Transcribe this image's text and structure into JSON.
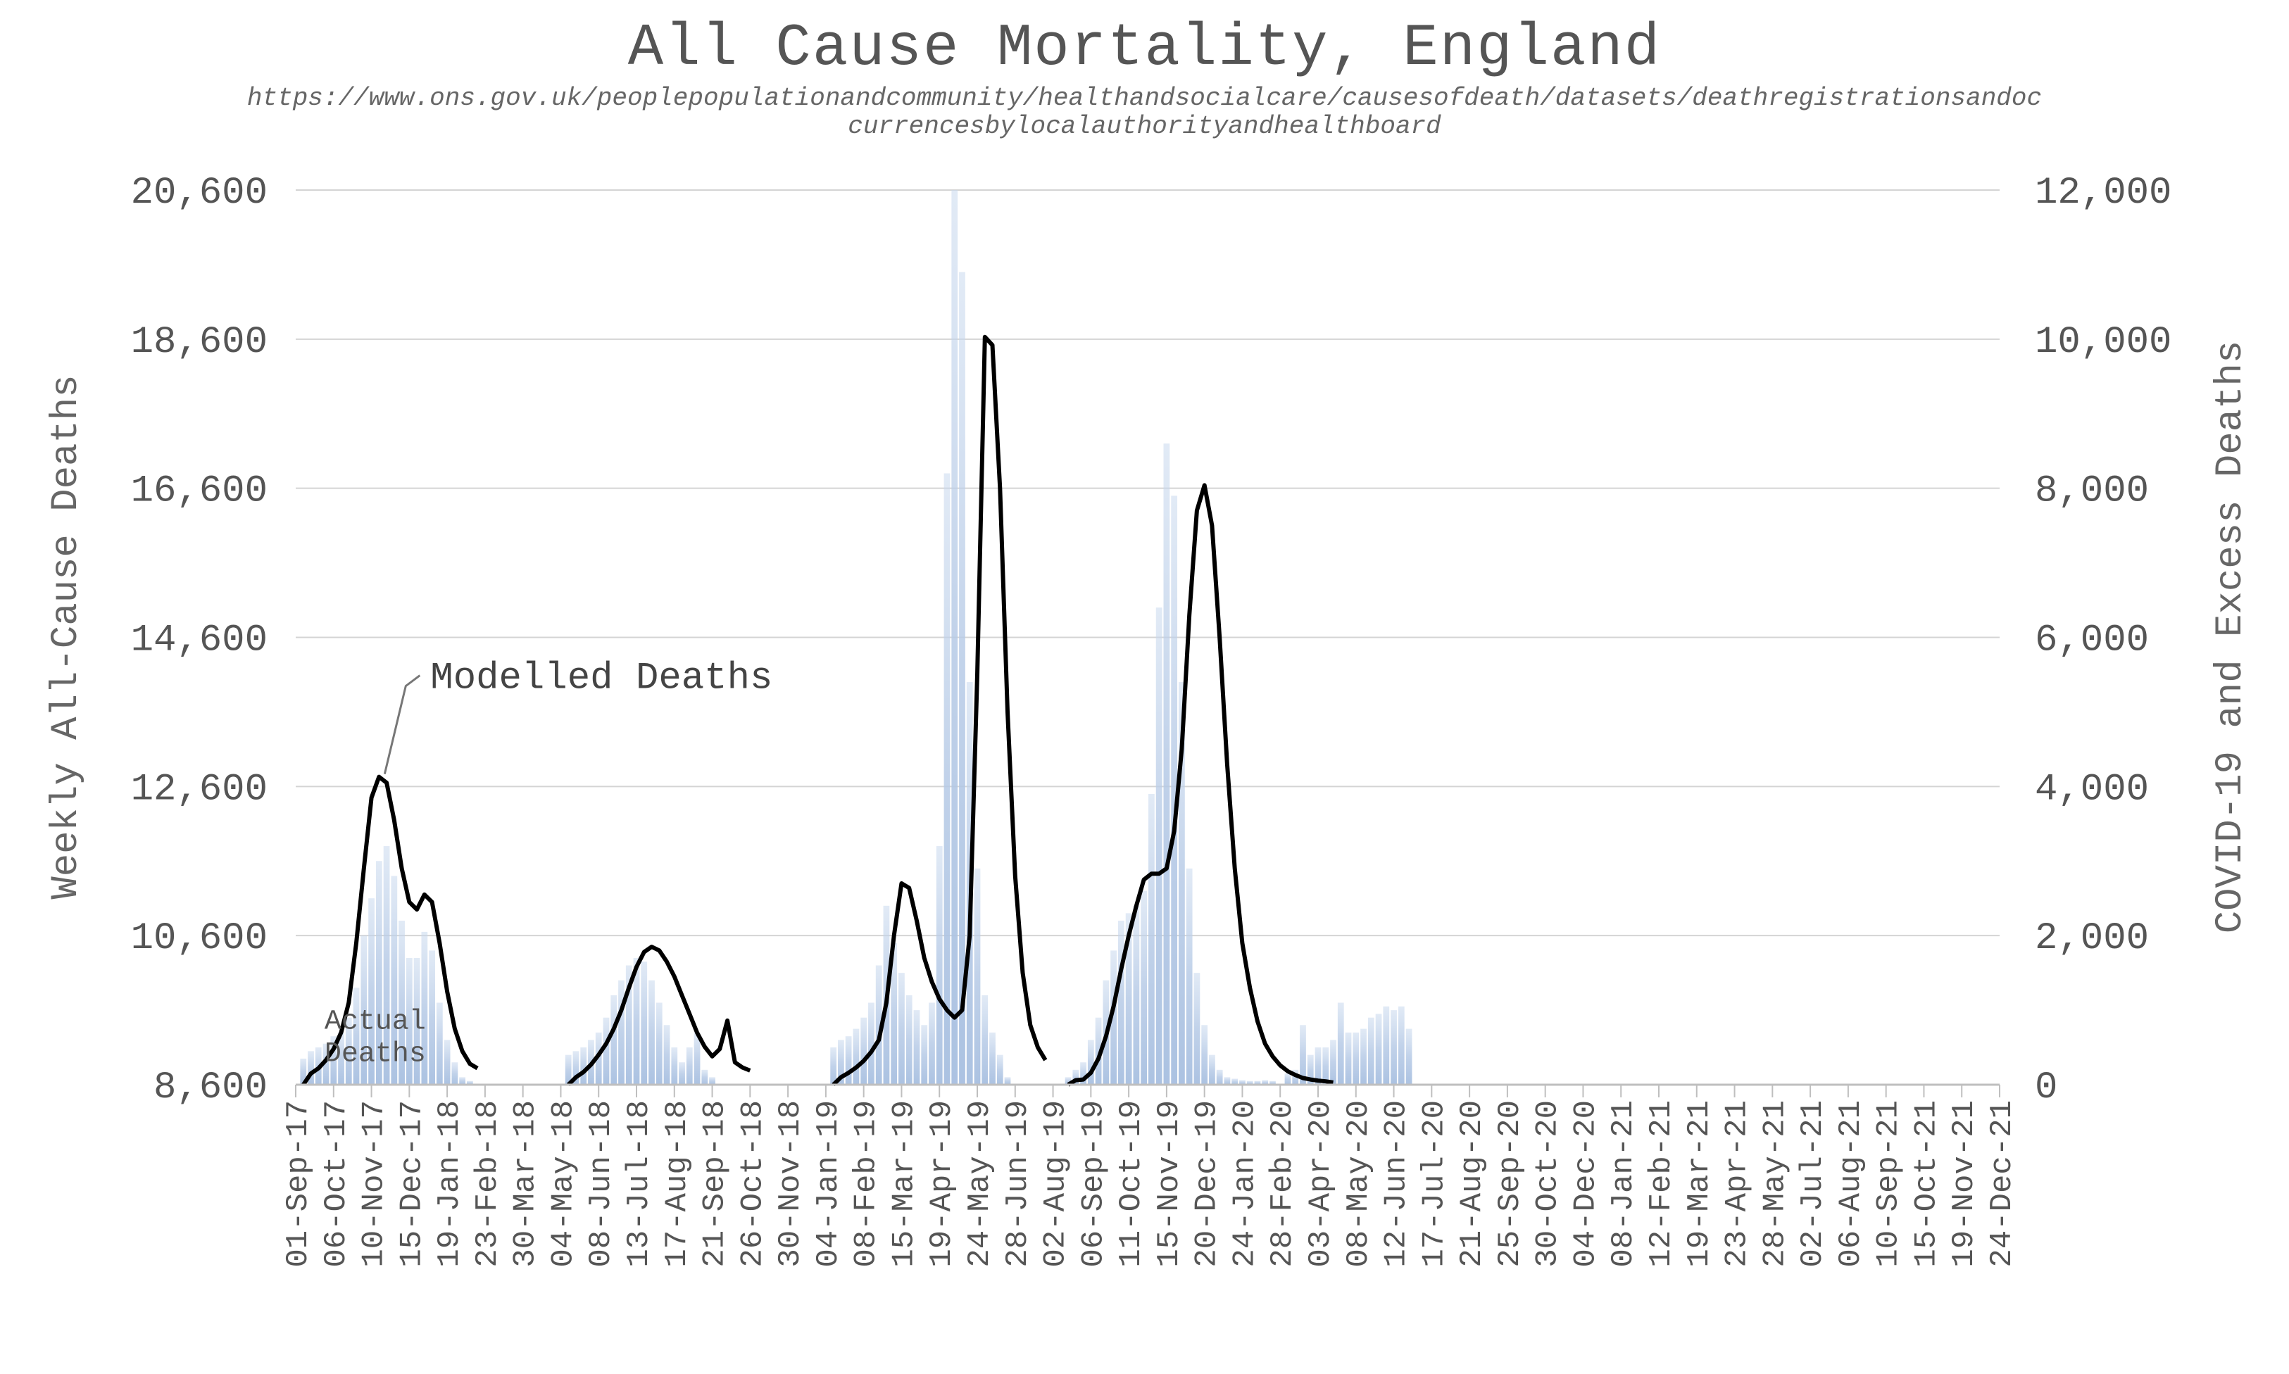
{
  "chart_data": {
    "type": "area",
    "title": "All Cause Mortality, England",
    "subtitle": "https://www.ons.gov.uk/peoplepopulationandcommunity/healthandsocialcare/causesofdeath/datasets/deathregistrationsandoccurrencesbylocalauthorityandhealthboard",
    "ylabel": "Weekly All-Cause Deaths",
    "y2label": "COVID-19 and Excess Deaths",
    "ylim": [
      8600,
      20600
    ],
    "y2lim": [
      0,
      12000
    ],
    "yticks": [
      "8,600",
      "10,600",
      "12,600",
      "14,600",
      "16,600",
      "18,600",
      "20,600"
    ],
    "y2ticks": [
      "0",
      "2,000",
      "4,000",
      "6,000",
      "8,000",
      "10,000",
      "12,000"
    ],
    "grid": true,
    "xticks": [
      "01-Sep-17",
      "06-Oct-17",
      "10-Nov-17",
      "15-Dec-17",
      "19-Jan-18",
      "23-Feb-18",
      "30-Mar-18",
      "04-May-18",
      "08-Jun-18",
      "13-Jul-18",
      "17-Aug-18",
      "21-Sep-18",
      "26-Oct-18",
      "30-Nov-18",
      "04-Jan-19",
      "08-Feb-19",
      "15-Mar-19",
      "19-Apr-19",
      "24-May-19",
      "28-Jun-19",
      "02-Aug-19",
      "06-Sep-19",
      "11-Oct-19",
      "15-Nov-19",
      "20-Dec-19",
      "24-Jan-20",
      "28-Feb-20",
      "03-Apr-20",
      "08-May-20",
      "12-Jun-20",
      "17-Jul-20",
      "21-Aug-20",
      "25-Sep-20",
      "30-Oct-20",
      "04-Dec-20",
      "08-Jan-21",
      "12-Feb-21",
      "19-Mar-21",
      "23-Apr-21",
      "28-May-21",
      "02-Jul-21",
      "06-Aug-21",
      "10-Sep-21",
      "15-Oct-21",
      "19-Nov-21",
      "24-Dec-21"
    ],
    "annotations": {
      "modelled": "Modelled Deaths",
      "actual_line1": "Actual",
      "actual_line2": "Deaths"
    },
    "series": [
      {
        "name": "Actual Deaths",
        "axis": "left",
        "style": "area",
        "color": "#b8cce4",
        "points": [
          [
            1,
            8950
          ],
          [
            2,
            9050
          ],
          [
            3,
            9100
          ],
          [
            4,
            9150
          ],
          [
            5,
            9250
          ],
          [
            6,
            9300
          ],
          [
            7,
            9500
          ],
          [
            8,
            9900
          ],
          [
            9,
            10600
          ],
          [
            10,
            11100
          ],
          [
            11,
            11600
          ],
          [
            12,
            11800
          ],
          [
            13,
            11400
          ],
          [
            14,
            10800
          ],
          [
            15,
            10300
          ],
          [
            16,
            10300
          ],
          [
            17,
            10650
          ],
          [
            18,
            10400
          ],
          [
            19,
            9700
          ],
          [
            20,
            9200
          ],
          [
            21,
            8900
          ],
          [
            22,
            8700
          ],
          [
            23,
            8650
          ],
          [
            36,
            9000
          ],
          [
            37,
            9050
          ],
          [
            38,
            9100
          ],
          [
            39,
            9200
          ],
          [
            40,
            9300
          ],
          [
            41,
            9500
          ],
          [
            42,
            9800
          ],
          [
            43,
            10000
          ],
          [
            44,
            10200
          ],
          [
            45,
            10300
          ],
          [
            46,
            10250
          ],
          [
            47,
            10000
          ],
          [
            48,
            9700
          ],
          [
            49,
            9400
          ],
          [
            50,
            9100
          ],
          [
            51,
            8900
          ],
          [
            52,
            9100
          ],
          [
            53,
            9300
          ],
          [
            54,
            8800
          ],
          [
            55,
            8700
          ],
          [
            71,
            9100
          ],
          [
            72,
            9200
          ],
          [
            73,
            9250
          ],
          [
            74,
            9350
          ],
          [
            75,
            9500
          ],
          [
            76,
            9700
          ],
          [
            77,
            10200
          ],
          [
            78,
            11000
          ],
          [
            79,
            10500
          ],
          [
            80,
            10100
          ],
          [
            81,
            9800
          ],
          [
            82,
            9600
          ],
          [
            83,
            9400
          ],
          [
            84,
            9700
          ],
          [
            85,
            11800
          ],
          [
            86,
            16800
          ],
          [
            87,
            20600
          ],
          [
            88,
            19500
          ],
          [
            89,
            14000
          ],
          [
            90,
            11500
          ],
          [
            91,
            9800
          ],
          [
            92,
            9300
          ],
          [
            93,
            9000
          ],
          [
            94,
            8700
          ],
          [
            102,
            8700
          ],
          [
            103,
            8800
          ],
          [
            104,
            8900
          ],
          [
            105,
            9200
          ],
          [
            106,
            9500
          ],
          [
            107,
            10000
          ],
          [
            108,
            10400
          ],
          [
            109,
            10800
          ],
          [
            110,
            10900
          ],
          [
            111,
            11000
          ],
          [
            112,
            11200
          ],
          [
            113,
            12500
          ],
          [
            114,
            15000
          ],
          [
            115,
            17200
          ],
          [
            116,
            16500
          ],
          [
            117,
            14000
          ],
          [
            118,
            11500
          ],
          [
            119,
            10100
          ],
          [
            120,
            9400
          ],
          [
            121,
            9000
          ],
          [
            122,
            8800
          ],
          [
            123,
            8700
          ],
          [
            124,
            8680
          ],
          [
            125,
            8660
          ],
          [
            126,
            8650
          ],
          [
            127,
            8650
          ],
          [
            128,
            8660
          ],
          [
            129,
            8650
          ],
          [
            131,
            8750
          ],
          [
            132,
            8800
          ],
          [
            133,
            9400
          ],
          [
            134,
            9000
          ],
          [
            135,
            9100
          ],
          [
            136,
            9100
          ],
          [
            137,
            9200
          ],
          [
            138,
            9700
          ],
          [
            139,
            9300
          ],
          [
            140,
            9300
          ],
          [
            141,
            9350
          ],
          [
            142,
            9500
          ],
          [
            143,
            9550
          ],
          [
            144,
            9650
          ],
          [
            145,
            9600
          ],
          [
            146,
            9650
          ],
          [
            147,
            9350
          ]
        ]
      },
      {
        "name": "Modelled Deaths",
        "axis": "right",
        "style": "line",
        "color": "#000000",
        "segments": [
          [
            [
              1,
              0
            ],
            [
              2,
              150
            ],
            [
              3,
              220
            ],
            [
              4,
              330
            ],
            [
              5,
              480
            ],
            [
              6,
              700
            ],
            [
              7,
              1100
            ],
            [
              8,
              1900
            ],
            [
              9,
              2900
            ],
            [
              10,
              3850
            ],
            [
              11,
              4130
            ],
            [
              12,
              4050
            ],
            [
              13,
              3550
            ],
            [
              14,
              2900
            ],
            [
              15,
              2450
            ],
            [
              16,
              2350
            ],
            [
              17,
              2550
            ],
            [
              18,
              2450
            ],
            [
              19,
              1900
            ],
            [
              20,
              1250
            ],
            [
              21,
              750
            ],
            [
              22,
              450
            ],
            [
              23,
              280
            ],
            [
              24,
              220
            ]
          ],
          [
            [
              36,
              0
            ],
            [
              37,
              100
            ],
            [
              38,
              170
            ],
            [
              39,
              270
            ],
            [
              40,
              400
            ],
            [
              41,
              550
            ],
            [
              42,
              750
            ],
            [
              43,
              1000
            ],
            [
              44,
              1300
            ],
            [
              45,
              1580
            ],
            [
              46,
              1780
            ],
            [
              47,
              1850
            ],
            [
              48,
              1800
            ],
            [
              49,
              1650
            ],
            [
              50,
              1450
            ],
            [
              51,
              1200
            ],
            [
              52,
              950
            ],
            [
              53,
              700
            ],
            [
              54,
              510
            ],
            [
              55,
              380
            ],
            [
              56,
              480
            ],
            [
              57,
              860
            ],
            [
              58,
              300
            ],
            [
              59,
              230
            ],
            [
              60,
              190
            ]
          ],
          [
            [
              71,
              0
            ],
            [
              72,
              100
            ],
            [
              73,
              160
            ],
            [
              74,
              230
            ],
            [
              75,
              320
            ],
            [
              76,
              440
            ],
            [
              77,
              600
            ],
            [
              78,
              1100
            ],
            [
              79,
              2000
            ],
            [
              80,
              2700
            ],
            [
              81,
              2640
            ],
            [
              82,
              2200
            ],
            [
              83,
              1700
            ],
            [
              84,
              1380
            ],
            [
              85,
              1150
            ],
            [
              86,
              1000
            ],
            [
              87,
              900
            ],
            [
              88,
              1000
            ],
            [
              89,
              2000
            ],
            [
              90,
              5500
            ],
            [
              91,
              10030
            ],
            [
              92,
              9920
            ],
            [
              93,
              8000
            ],
            [
              94,
              5000
            ],
            [
              95,
              2800
            ],
            [
              96,
              1500
            ],
            [
              97,
              800
            ],
            [
              98,
              500
            ],
            [
              99,
              330
            ]
          ],
          [
            [
              102,
              0
            ],
            [
              103,
              60
            ],
            [
              104,
              70
            ],
            [
              105,
              160
            ],
            [
              106,
              350
            ],
            [
              107,
              650
            ],
            [
              108,
              1050
            ],
            [
              109,
              1550
            ],
            [
              110,
              2000
            ],
            [
              111,
              2400
            ],
            [
              112,
              2750
            ],
            [
              113,
              2830
            ],
            [
              114,
              2830
            ],
            [
              115,
              2900
            ],
            [
              116,
              3400
            ],
            [
              117,
              4500
            ],
            [
              118,
              6300
            ],
            [
              119,
              7700
            ],
            [
              120,
              8040
            ],
            [
              121,
              7500
            ],
            [
              122,
              6000
            ],
            [
              123,
              4300
            ],
            [
              124,
              2900
            ],
            [
              125,
              1900
            ],
            [
              126,
              1300
            ],
            [
              127,
              850
            ],
            [
              128,
              550
            ],
            [
              129,
              380
            ],
            [
              130,
              260
            ],
            [
              131,
              180
            ],
            [
              132,
              130
            ],
            [
              133,
              90
            ],
            [
              134,
              70
            ],
            [
              135,
              55
            ],
            [
              136,
              45
            ],
            [
              137,
              30
            ]
          ]
        ]
      }
    ]
  }
}
